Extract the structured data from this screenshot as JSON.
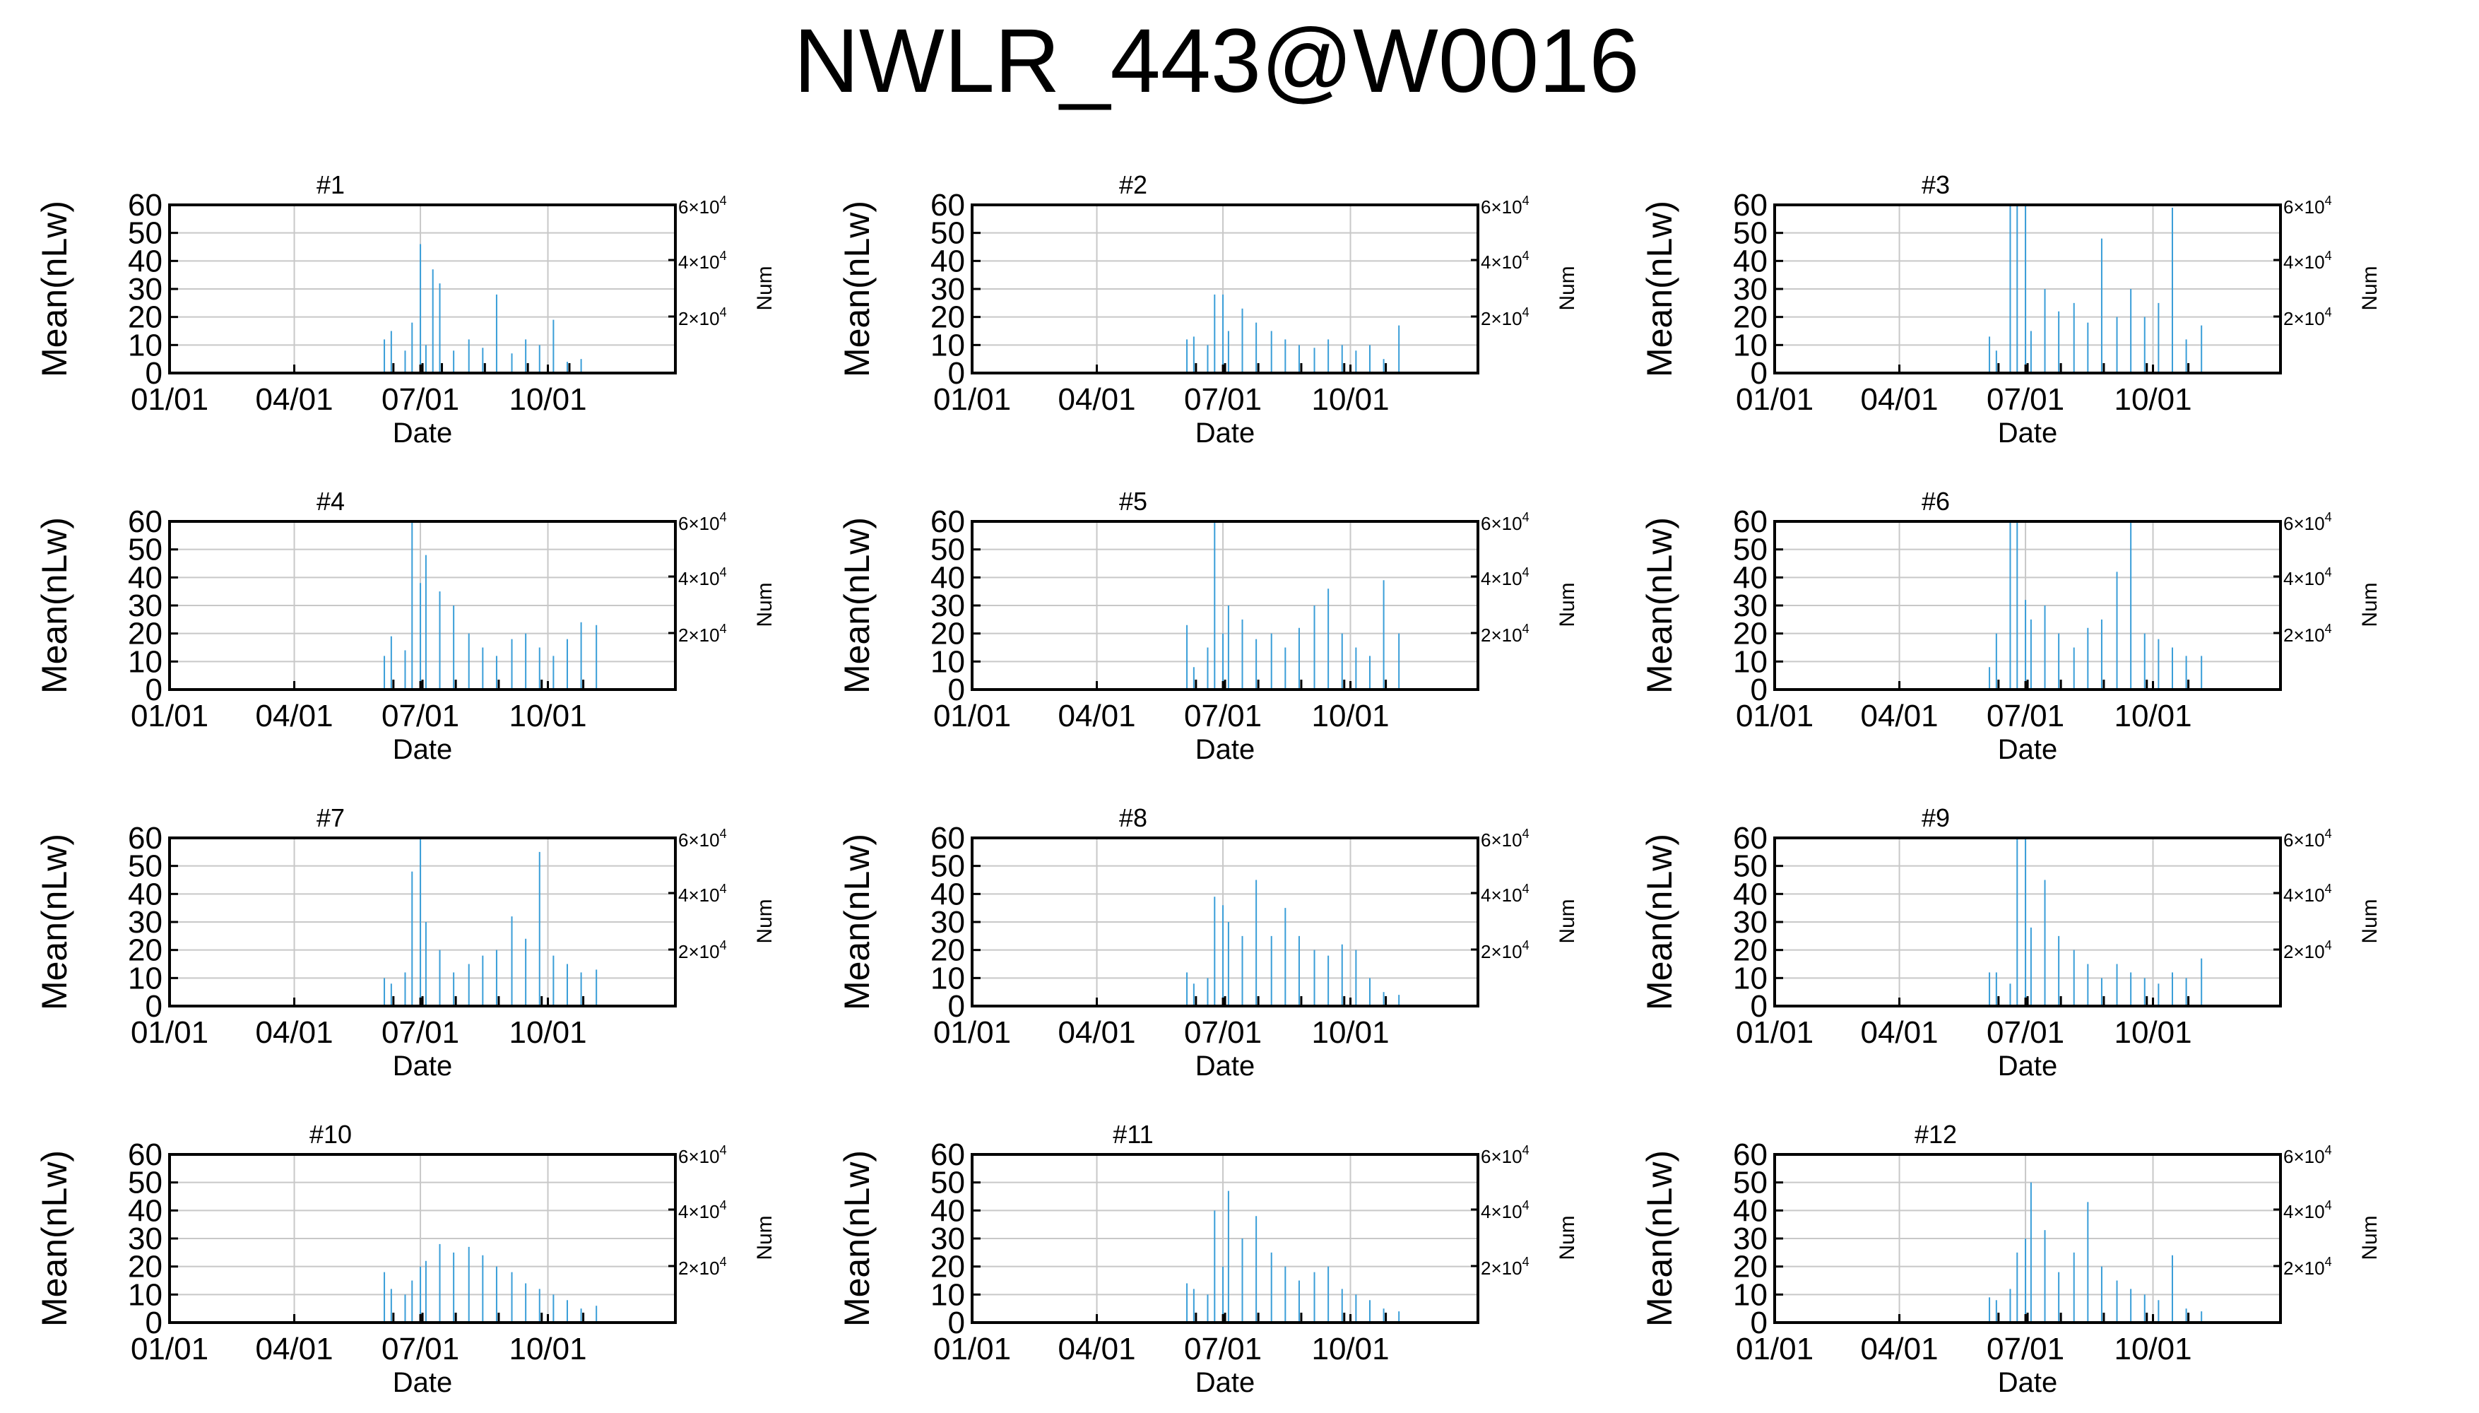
{
  "title": "NWLR_443@W0016",
  "colors": {
    "mean_series": "#3a9ed8",
    "num_series": "#000000",
    "grid": "#c8c8c8"
  },
  "chart_data": [
    {
      "type": "bar",
      "title": "#1",
      "xlabel": "Date",
      "ylabel": "Mean(nLw)",
      "y2label": "Num",
      "ylim": [
        0,
        60
      ],
      "y2lim": [
        0,
        60000
      ],
      "grid": true,
      "x_ticks": [
        "01/01",
        "04/01",
        "07/01",
        "10/01"
      ],
      "y_ticks": [
        "60",
        "50",
        "40",
        "30",
        "20",
        "10",
        "0"
      ],
      "y2_ticks": [
        {
          "m": "6",
          "e": "4"
        },
        {
          "m": "4",
          "e": "4"
        },
        {
          "m": "2",
          "e": "4"
        }
      ],
      "series": [
        {
          "x": [
            "06/05",
            "06/10",
            "06/20",
            "06/25",
            "07/01",
            "07/05",
            "07/10",
            "07/15",
            "07/25",
            "08/05",
            "08/15",
            "08/25",
            "09/05",
            "09/15",
            "09/25",
            "10/05",
            "10/15",
            "10/25"
          ],
          "values": [
            12,
            15,
            8,
            18,
            46,
            10,
            37,
            32,
            8,
            12,
            9,
            28,
            7,
            12,
            10,
            19,
            4,
            5
          ]
        }
      ]
    },
    {
      "type": "bar",
      "title": "#2",
      "xlabel": "Date",
      "ylabel": "Mean(nLw)",
      "y2label": "Num",
      "ylim": [
        0,
        60
      ],
      "y2lim": [
        0,
        60000
      ],
      "grid": true,
      "x_ticks": [
        "01/01",
        "04/01",
        "07/01",
        "10/01"
      ],
      "y_ticks": [
        "60",
        "50",
        "40",
        "30",
        "20",
        "10",
        "0"
      ],
      "y2_ticks": [
        {
          "m": "6",
          "e": "4"
        },
        {
          "m": "4",
          "e": "4"
        },
        {
          "m": "2",
          "e": "4"
        }
      ],
      "series": [
        {
          "x": [
            "06/05",
            "06/10",
            "06/20",
            "06/25",
            "07/01",
            "07/05",
            "07/15",
            "07/25",
            "08/05",
            "08/15",
            "08/25",
            "09/05",
            "09/15",
            "09/25",
            "10/05",
            "10/15",
            "10/25",
            "11/05"
          ],
          "values": [
            12,
            13,
            10,
            28,
            28,
            15,
            23,
            18,
            15,
            12,
            10,
            9,
            12,
            10,
            8,
            10,
            5,
            17
          ]
        }
      ]
    },
    {
      "type": "bar",
      "title": "#3",
      "xlabel": "Date",
      "ylabel": "Mean(nLw)",
      "y2label": "Num",
      "ylim": [
        0,
        60
      ],
      "y2lim": [
        0,
        60000
      ],
      "grid": true,
      "x_ticks": [
        "01/01",
        "04/01",
        "07/01",
        "10/01"
      ],
      "y_ticks": [
        "60",
        "50",
        "40",
        "30",
        "20",
        "10",
        "0"
      ],
      "y2_ticks": [
        {
          "m": "6",
          "e": "4"
        },
        {
          "m": "4",
          "e": "4"
        },
        {
          "m": "2",
          "e": "4"
        }
      ],
      "series": [
        {
          "x": [
            "06/05",
            "06/10",
            "06/20",
            "06/25",
            "07/01",
            "07/05",
            "07/15",
            "07/25",
            "08/05",
            "08/15",
            "08/25",
            "09/05",
            "09/15",
            "09/25",
            "10/05",
            "10/15",
            "10/25",
            "11/05"
          ],
          "values": [
            13,
            8,
            60,
            60,
            60,
            15,
            30,
            22,
            25,
            18,
            48,
            20,
            30,
            20,
            25,
            59,
            12,
            17
          ]
        }
      ]
    },
    {
      "type": "bar",
      "title": "#4",
      "xlabel": "Date",
      "ylabel": "Mean(nLw)",
      "y2label": "Num",
      "ylim": [
        0,
        60
      ],
      "y2lim": [
        0,
        60000
      ],
      "grid": true,
      "x_ticks": [
        "01/01",
        "04/01",
        "07/01",
        "10/01"
      ],
      "y_ticks": [
        "60",
        "50",
        "40",
        "30",
        "20",
        "10",
        "0"
      ],
      "y2_ticks": [
        {
          "m": "6",
          "e": "4"
        },
        {
          "m": "4",
          "e": "4"
        },
        {
          "m": "2",
          "e": "4"
        }
      ],
      "series": [
        {
          "x": [
            "06/05",
            "06/10",
            "06/20",
            "06/25",
            "07/01",
            "07/05",
            "07/15",
            "07/25",
            "08/05",
            "08/15",
            "08/25",
            "09/05",
            "09/15",
            "09/25",
            "10/05",
            "10/15",
            "10/25",
            "11/05"
          ],
          "values": [
            12,
            19,
            14,
            60,
            38,
            48,
            35,
            30,
            20,
            15,
            12,
            18,
            20,
            15,
            12,
            18,
            24,
            23
          ]
        }
      ]
    },
    {
      "type": "bar",
      "title": "#5",
      "xlabel": "Date",
      "ylabel": "Mean(nLw)",
      "y2label": "Num",
      "ylim": [
        0,
        60
      ],
      "y2lim": [
        0,
        60000
      ],
      "grid": true,
      "x_ticks": [
        "01/01",
        "04/01",
        "07/01",
        "10/01"
      ],
      "y_ticks": [
        "60",
        "50",
        "40",
        "30",
        "20",
        "10",
        "0"
      ],
      "y2_ticks": [
        {
          "m": "6",
          "e": "4"
        },
        {
          "m": "4",
          "e": "4"
        },
        {
          "m": "2",
          "e": "4"
        }
      ],
      "series": [
        {
          "x": [
            "06/05",
            "06/10",
            "06/20",
            "06/25",
            "07/01",
            "07/05",
            "07/15",
            "07/25",
            "08/05",
            "08/15",
            "08/25",
            "09/05",
            "09/15",
            "09/25",
            "10/05",
            "10/15",
            "10/25",
            "11/05"
          ],
          "values": [
            23,
            8,
            15,
            60,
            20,
            30,
            25,
            18,
            20,
            15,
            22,
            30,
            36,
            20,
            15,
            12,
            39,
            20
          ]
        }
      ]
    },
    {
      "type": "bar",
      "title": "#6",
      "xlabel": "Date",
      "ylabel": "Mean(nLw)",
      "y2label": "Num",
      "ylim": [
        0,
        60
      ],
      "y2lim": [
        0,
        60000
      ],
      "grid": true,
      "x_ticks": [
        "01/01",
        "04/01",
        "07/01",
        "10/01"
      ],
      "y_ticks": [
        "60",
        "50",
        "40",
        "30",
        "20",
        "10",
        "0"
      ],
      "y2_ticks": [
        {
          "m": "6",
          "e": "4"
        },
        {
          "m": "4",
          "e": "4"
        },
        {
          "m": "2",
          "e": "4"
        }
      ],
      "series": [
        {
          "x": [
            "06/05",
            "06/10",
            "06/20",
            "06/25",
            "07/01",
            "07/05",
            "07/15",
            "07/25",
            "08/05",
            "08/15",
            "08/25",
            "09/05",
            "09/15",
            "09/25",
            "10/05",
            "10/15",
            "10/25",
            "11/05"
          ],
          "values": [
            8,
            20,
            60,
            60,
            32,
            25,
            30,
            20,
            15,
            22,
            25,
            42,
            60,
            20,
            18,
            15,
            12,
            12
          ]
        }
      ]
    },
    {
      "type": "bar",
      "title": "#7",
      "xlabel": "Date",
      "ylabel": "Mean(nLw)",
      "y2label": "Num",
      "ylim": [
        0,
        60
      ],
      "y2lim": [
        0,
        60000
      ],
      "grid": true,
      "x_ticks": [
        "01/01",
        "04/01",
        "07/01",
        "10/01"
      ],
      "y_ticks": [
        "60",
        "50",
        "40",
        "30",
        "20",
        "10",
        "0"
      ],
      "y2_ticks": [
        {
          "m": "6",
          "e": "4"
        },
        {
          "m": "4",
          "e": "4"
        },
        {
          "m": "2",
          "e": "4"
        }
      ],
      "series": [
        {
          "x": [
            "06/05",
            "06/10",
            "06/20",
            "06/25",
            "07/01",
            "07/05",
            "07/15",
            "07/25",
            "08/05",
            "08/15",
            "08/25",
            "09/05",
            "09/15",
            "09/25",
            "10/05",
            "10/15",
            "10/25",
            "11/05"
          ],
          "values": [
            10,
            8,
            12,
            48,
            60,
            30,
            20,
            12,
            15,
            18,
            20,
            32,
            24,
            55,
            18,
            15,
            12,
            13
          ]
        }
      ]
    },
    {
      "type": "bar",
      "title": "#8",
      "xlabel": "Date",
      "ylabel": "Mean(nLw)",
      "y2label": "Num",
      "ylim": [
        0,
        60
      ],
      "y2lim": [
        0,
        60000
      ],
      "grid": true,
      "x_ticks": [
        "01/01",
        "04/01",
        "07/01",
        "10/01"
      ],
      "y_ticks": [
        "60",
        "50",
        "40",
        "30",
        "20",
        "10",
        "0"
      ],
      "y2_ticks": [
        {
          "m": "6",
          "e": "4"
        },
        {
          "m": "4",
          "e": "4"
        },
        {
          "m": "2",
          "e": "4"
        }
      ],
      "series": [
        {
          "x": [
            "06/05",
            "06/10",
            "06/20",
            "06/25",
            "07/01",
            "07/05",
            "07/15",
            "07/25",
            "08/05",
            "08/15",
            "08/25",
            "09/05",
            "09/15",
            "09/25",
            "10/05",
            "10/15",
            "10/25",
            "11/05"
          ],
          "values": [
            12,
            8,
            10,
            39,
            36,
            30,
            25,
            45,
            25,
            35,
            25,
            20,
            18,
            22,
            20,
            10,
            5,
            4
          ]
        }
      ]
    },
    {
      "type": "bar",
      "title": "#9",
      "xlabel": "Date",
      "ylabel": "Mean(nLw)",
      "y2label": "Num",
      "ylim": [
        0,
        60
      ],
      "y2lim": [
        0,
        60000
      ],
      "grid": true,
      "x_ticks": [
        "01/01",
        "04/01",
        "07/01",
        "10/01"
      ],
      "y_ticks": [
        "60",
        "50",
        "40",
        "30",
        "20",
        "10",
        "0"
      ],
      "y2_ticks": [
        {
          "m": "6",
          "e": "4"
        },
        {
          "m": "4",
          "e": "4"
        },
        {
          "m": "2",
          "e": "4"
        }
      ],
      "series": [
        {
          "x": [
            "06/05",
            "06/10",
            "06/20",
            "06/25",
            "07/01",
            "07/05",
            "07/15",
            "07/25",
            "08/05",
            "08/15",
            "08/25",
            "09/05",
            "09/15",
            "09/25",
            "10/05",
            "10/15",
            "10/25",
            "11/05"
          ],
          "values": [
            12,
            12,
            8,
            60,
            60,
            28,
            45,
            25,
            20,
            15,
            10,
            15,
            12,
            10,
            8,
            12,
            10,
            17
          ]
        }
      ]
    },
    {
      "type": "bar",
      "title": "#10",
      "xlabel": "Date",
      "ylabel": "Mean(nLw)",
      "y2label": "Num",
      "ylim": [
        0,
        60
      ],
      "y2lim": [
        0,
        60000
      ],
      "grid": true,
      "x_ticks": [
        "01/01",
        "04/01",
        "07/01",
        "10/01"
      ],
      "y_ticks": [
        "60",
        "50",
        "40",
        "30",
        "20",
        "10",
        "0"
      ],
      "y2_ticks": [
        {
          "m": "6",
          "e": "4"
        },
        {
          "m": "4",
          "e": "4"
        },
        {
          "m": "2",
          "e": "4"
        }
      ],
      "series": [
        {
          "x": [
            "06/05",
            "06/10",
            "06/20",
            "06/25",
            "07/01",
            "07/05",
            "07/15",
            "07/25",
            "08/05",
            "08/15",
            "08/25",
            "09/05",
            "09/15",
            "09/25",
            "10/05",
            "10/15",
            "10/25",
            "11/05"
          ],
          "values": [
            18,
            12,
            10,
            15,
            20,
            22,
            28,
            25,
            27,
            24,
            20,
            18,
            14,
            12,
            10,
            8,
            5,
            6
          ]
        }
      ]
    },
    {
      "type": "bar",
      "title": "#11",
      "xlabel": "Date",
      "ylabel": "Mean(nLw)",
      "y2label": "Num",
      "ylim": [
        0,
        60
      ],
      "y2lim": [
        0,
        60000
      ],
      "grid": true,
      "x_ticks": [
        "01/01",
        "04/01",
        "07/01",
        "10/01"
      ],
      "y_ticks": [
        "60",
        "50",
        "40",
        "30",
        "20",
        "10",
        "0"
      ],
      "y2_ticks": [
        {
          "m": "6",
          "e": "4"
        },
        {
          "m": "4",
          "e": "4"
        },
        {
          "m": "2",
          "e": "4"
        }
      ],
      "series": [
        {
          "x": [
            "06/05",
            "06/10",
            "06/20",
            "06/25",
            "07/01",
            "07/05",
            "07/15",
            "07/25",
            "08/05",
            "08/15",
            "08/25",
            "09/05",
            "09/15",
            "09/25",
            "10/05",
            "10/15",
            "10/25",
            "11/05"
          ],
          "values": [
            14,
            12,
            10,
            40,
            20,
            47,
            30,
            38,
            25,
            20,
            15,
            18,
            20,
            12,
            10,
            8,
            5,
            4
          ]
        }
      ]
    },
    {
      "type": "bar",
      "title": "#12",
      "xlabel": "Date",
      "ylabel": "Mean(nLw)",
      "y2label": "Num",
      "ylim": [
        0,
        60
      ],
      "y2lim": [
        0,
        60000
      ],
      "grid": true,
      "x_ticks": [
        "01/01",
        "04/01",
        "07/01",
        "10/01"
      ],
      "y_ticks": [
        "60",
        "50",
        "40",
        "30",
        "20",
        "10",
        "0"
      ],
      "y2_ticks": [
        {
          "m": "6",
          "e": "4"
        },
        {
          "m": "4",
          "e": "4"
        },
        {
          "m": "2",
          "e": "4"
        }
      ],
      "series": [
        {
          "x": [
            "06/05",
            "06/10",
            "06/20",
            "06/25",
            "07/01",
            "07/05",
            "07/15",
            "07/25",
            "08/05",
            "08/15",
            "08/25",
            "09/05",
            "09/15",
            "09/25",
            "10/05",
            "10/15",
            "10/25",
            "11/05"
          ],
          "values": [
            9,
            8,
            12,
            25,
            30,
            50,
            33,
            18,
            25,
            43,
            20,
            15,
            12,
            10,
            8,
            24,
            5,
            4
          ]
        }
      ]
    }
  ]
}
